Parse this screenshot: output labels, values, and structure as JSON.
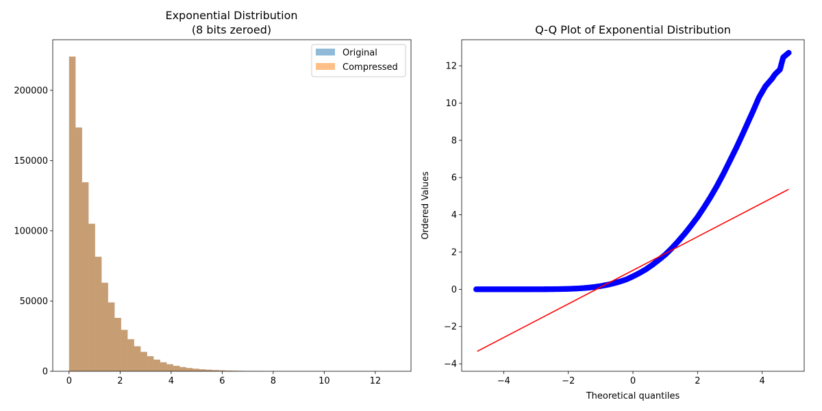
{
  "chart_data": [
    {
      "type": "bar",
      "title": "Exponential Distribution\n(8 bits zeroed)",
      "xlabel": "",
      "ylabel": "",
      "xlim": [
        -0.64,
        13.4
      ],
      "ylim": [
        0,
        236000
      ],
      "xticks": [
        0,
        2,
        4,
        6,
        8,
        10,
        12
      ],
      "yticks": [
        0,
        50000,
        100000,
        150000,
        200000
      ],
      "grid": false,
      "legend_position": "top-right",
      "bin_edges_start": 0,
      "bin_width": 0.255,
      "series": [
        {
          "name": "Original",
          "color": "#1f77b4",
          "alpha": 0.5,
          "values": [
            224000,
            173500,
            134500,
            105000,
            81500,
            63000,
            49000,
            38000,
            29500,
            22800,
            17800,
            13800,
            10700,
            8300,
            6400,
            5000,
            3900,
            3000,
            2300,
            1800,
            1400,
            1100,
            850,
            650,
            500,
            400,
            300,
            230,
            180,
            140,
            110,
            85,
            65,
            50,
            40,
            30,
            24,
            18,
            14,
            11,
            9,
            7,
            5,
            4,
            3,
            2,
            2,
            1,
            1,
            1
          ]
        },
        {
          "name": "Compressed",
          "color": "#ff7f0e",
          "alpha": 0.5,
          "values": [
            224000,
            173500,
            134500,
            105000,
            81500,
            63000,
            49000,
            38000,
            29500,
            22800,
            17800,
            13800,
            10700,
            8300,
            6400,
            5000,
            3900,
            3000,
            2300,
            1800,
            1400,
            1100,
            850,
            650,
            500,
            400,
            300,
            230,
            180,
            140,
            110,
            85,
            65,
            50,
            40,
            30,
            24,
            18,
            14,
            11,
            9,
            7,
            5,
            4,
            3,
            2,
            2,
            1,
            1,
            1
          ]
        }
      ]
    },
    {
      "type": "scatter",
      "title": "Q-Q Plot of Exponential Distribution",
      "xlabel": "Theoretical quantiles",
      "ylabel": "Ordered Values",
      "xlim": [
        -5.3,
        5.3
      ],
      "ylim": [
        -4.4,
        13.4
      ],
      "xticks": [
        -4,
        -2,
        0,
        2,
        4
      ],
      "yticks": [
        -4,
        -2,
        0,
        2,
        4,
        6,
        8,
        10,
        12
      ],
      "grid": false,
      "series": [
        {
          "name": "",
          "kind": "markers",
          "color": "#0000ff",
          "points": [
            [
              -4.85,
              0.0
            ],
            [
              -4.6,
              0.0
            ],
            [
              -4.2,
              0.0
            ],
            [
              -3.8,
              0.0
            ],
            [
              -3.4,
              0.0
            ],
            [
              -3.0,
              0.001
            ],
            [
              -2.6,
              0.005
            ],
            [
              -2.2,
              0.014
            ],
            [
              -2.0,
              0.023
            ],
            [
              -1.8,
              0.037
            ],
            [
              -1.6,
              0.056
            ],
            [
              -1.4,
              0.084
            ],
            [
              -1.2,
              0.122
            ],
            [
              -1.0,
              0.173
            ],
            [
              -0.8,
              0.238
            ],
            [
              -0.6,
              0.318
            ],
            [
              -0.4,
              0.416
            ],
            [
              -0.2,
              0.531
            ],
            [
              0.0,
              0.693
            ],
            [
              0.2,
              0.87
            ],
            [
              0.4,
              1.07
            ],
            [
              0.6,
              1.31
            ],
            [
              0.8,
              1.58
            ],
            [
              1.0,
              1.86
            ],
            [
              1.2,
              2.2
            ],
            [
              1.4,
              2.58
            ],
            [
              1.6,
              2.98
            ],
            [
              1.8,
              3.42
            ],
            [
              2.0,
              3.88
            ],
            [
              2.2,
              4.4
            ],
            [
              2.4,
              4.95
            ],
            [
              2.6,
              5.55
            ],
            [
              2.8,
              6.2
            ],
            [
              3.0,
              6.9
            ],
            [
              3.2,
              7.6
            ],
            [
              3.4,
              8.35
            ],
            [
              3.6,
              9.12
            ],
            [
              3.7,
              9.5
            ],
            [
              3.8,
              9.9
            ],
            [
              3.9,
              10.3
            ],
            [
              4.0,
              10.6
            ],
            [
              4.1,
              10.9
            ],
            [
              4.2,
              11.1
            ],
            [
              4.3,
              11.3
            ],
            [
              4.4,
              11.55
            ],
            [
              4.55,
              11.8
            ],
            [
              4.65,
              12.45
            ],
            [
              4.82,
              12.7
            ]
          ]
        },
        {
          "name": "",
          "kind": "line",
          "color": "#ff0000",
          "points": [
            [
              -4.82,
              -3.33
            ],
            [
              4.82,
              5.37
            ]
          ]
        }
      ]
    }
  ],
  "legend": {
    "items": [
      {
        "label": "Original",
        "color": "#1f77b4"
      },
      {
        "label": "Compressed",
        "color": "#ff7f0e"
      }
    ]
  }
}
